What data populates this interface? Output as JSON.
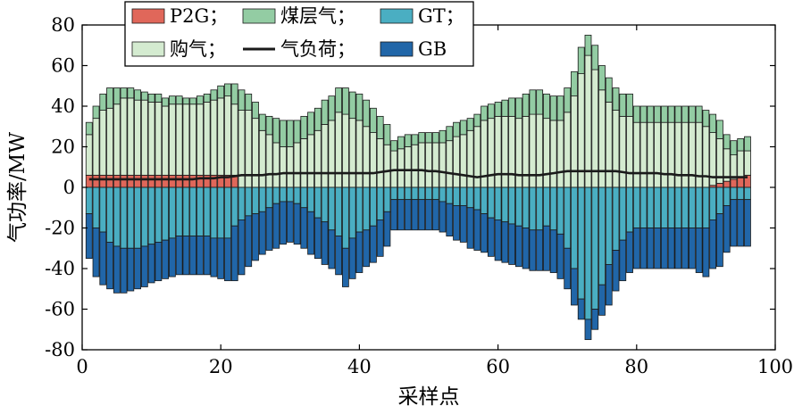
{
  "chart_data": {
    "type": "bar",
    "stacked": true,
    "xlabel": "采样点",
    "ylabel": "气功率/MW",
    "xlim": [
      0,
      100
    ],
    "ylim": [
      -80,
      80
    ],
    "x_ticks": [
      0,
      20,
      40,
      60,
      80,
      100
    ],
    "y_ticks": [
      -80,
      -60,
      -40,
      -20,
      0,
      20,
      40,
      60,
      80
    ],
    "grid": false,
    "legend_position": "top",
    "legend": [
      {
        "key": "p2g",
        "label": "P2G；",
        "swatch": "bar"
      },
      {
        "key": "cbm",
        "label": "煤层气；",
        "swatch": "bar"
      },
      {
        "key": "gt",
        "label": "GT；",
        "swatch": "bar"
      },
      {
        "key": "purchase",
        "label": "购气；",
        "swatch": "bar"
      },
      {
        "key": "load",
        "label": "气负荷；",
        "swatch": "line"
      },
      {
        "key": "gb",
        "label": "GB",
        "swatch": "bar"
      }
    ],
    "colors": {
      "p2g": "#e0675a",
      "cbm": "#93cca3",
      "gt": "#4aaec2",
      "purchase": "#d4ebd0",
      "load": "#1a1a1a",
      "gb": "#2166a8"
    },
    "x": [
      1,
      2,
      3,
      4,
      5,
      6,
      7,
      8,
      9,
      10,
      11,
      12,
      13,
      14,
      15,
      16,
      17,
      18,
      19,
      20,
      21,
      22,
      23,
      24,
      25,
      26,
      27,
      28,
      29,
      30,
      31,
      32,
      33,
      34,
      35,
      36,
      37,
      38,
      39,
      40,
      41,
      42,
      43,
      44,
      45,
      46,
      47,
      48,
      49,
      50,
      51,
      52,
      53,
      54,
      55,
      56,
      57,
      58,
      59,
      60,
      61,
      62,
      63,
      64,
      65,
      66,
      67,
      68,
      69,
      70,
      71,
      72,
      73,
      74,
      75,
      76,
      77,
      78,
      79,
      80,
      81,
      82,
      83,
      84,
      85,
      86,
      87,
      88,
      89,
      90,
      91,
      92,
      93,
      94,
      95,
      96
    ],
    "series": [
      {
        "key": "p2g",
        "name": "P2G",
        "values": [
          6,
          6,
          6,
          6,
          6,
          6,
          6,
          6,
          6,
          6,
          6,
          6,
          6,
          6,
          6,
          6,
          6,
          6,
          6,
          6,
          6,
          6,
          0,
          0,
          0,
          0,
          0,
          0,
          0,
          0,
          0,
          0,
          0,
          0,
          0,
          0,
          0,
          0,
          0,
          0,
          0,
          0,
          0,
          0,
          0,
          0,
          0,
          0,
          0,
          0,
          0,
          0,
          0,
          0,
          0,
          0,
          0,
          0,
          0,
          0,
          0,
          0,
          0,
          0,
          0,
          0,
          0,
          0,
          0,
          0,
          0,
          0,
          0,
          0,
          0,
          0,
          0,
          0,
          0,
          0,
          0,
          0,
          0,
          0,
          0,
          0,
          0,
          0,
          0,
          0,
          1,
          2,
          3,
          4,
          5,
          6
        ]
      },
      {
        "key": "purchase",
        "name": "购气",
        "values": [
          20,
          28,
          32,
          33,
          35,
          38,
          38,
          37,
          37,
          36,
          36,
          34,
          35,
          35,
          35,
          35,
          35,
          36,
          37,
          38,
          39,
          35,
          38,
          38,
          34,
          28,
          26,
          22,
          20,
          20,
          22,
          24,
          26,
          28,
          31,
          33,
          37,
          36,
          34,
          33,
          30,
          27,
          24,
          21,
          18,
          19,
          20,
          21,
          22,
          22,
          22,
          22,
          23,
          25,
          26,
          28,
          30,
          33,
          34,
          35,
          35,
          35,
          34,
          35,
          36,
          36,
          34,
          33,
          33,
          37,
          45,
          56,
          65,
          58,
          48,
          42,
          38,
          35,
          35,
          32,
          32,
          32,
          32,
          32,
          32,
          32,
          32,
          32,
          32,
          30,
          26,
          22,
          16,
          12,
          13,
          12
        ]
      },
      {
        "key": "cbm",
        "name": "煤层气",
        "values": [
          6,
          6,
          8,
          10,
          8,
          5,
          5,
          5,
          4,
          4,
          4,
          4,
          4,
          4,
          3,
          3,
          4,
          4,
          5,
          6,
          6,
          10,
          10,
          8,
          8,
          8,
          9,
          12,
          13,
          13,
          11,
          11,
          11,
          11,
          12,
          12,
          12,
          13,
          13,
          13,
          13,
          12,
          11,
          10,
          5,
          6,
          6,
          5,
          5,
          5,
          5,
          6,
          7,
          7,
          7,
          6,
          6,
          7,
          7,
          7,
          8,
          9,
          10,
          11,
          12,
          12,
          12,
          12,
          12,
          12,
          12,
          13,
          10,
          12,
          12,
          12,
          11,
          11,
          11,
          8,
          8,
          8,
          8,
          8,
          8,
          8,
          8,
          8,
          8,
          8,
          9,
          9,
          7,
          7,
          6,
          7
        ]
      },
      {
        "key": "gt",
        "name": "GT",
        "values": [
          -13,
          -20,
          -22,
          -27,
          -29,
          -30,
          -30,
          -30,
          -29,
          -28,
          -27,
          -26,
          -25,
          -24,
          -24,
          -24,
          -24,
          -24,
          -25,
          -25,
          -25,
          -19,
          -16,
          -14,
          -13,
          -12,
          -10,
          -8,
          -7,
          -7,
          -8,
          -10,
          -12,
          -15,
          -17,
          -21,
          -24,
          -30,
          -25,
          -22,
          -21,
          -19,
          -16,
          -12,
          -6,
          -6,
          -6,
          -6,
          -6,
          -6,
          -6,
          -7,
          -8,
          -9,
          -9,
          -10,
          -11,
          -13,
          -15,
          -16,
          -17,
          -18,
          -19,
          -20,
          -21,
          -21,
          -19,
          -21,
          -23,
          -30,
          -40,
          -55,
          -65,
          -60,
          -48,
          -38,
          -31,
          -26,
          -22,
          -20,
          -20,
          -20,
          -20,
          -20,
          -20,
          -20,
          -20,
          -20,
          -20,
          -20,
          -16,
          -13,
          -9,
          -6,
          -6,
          -6
        ]
      },
      {
        "key": "gb",
        "name": "GB",
        "values": [
          -22,
          -24,
          -26,
          -23,
          -23,
          -22,
          -21,
          -20,
          -20,
          -19,
          -19,
          -19,
          -19,
          -19,
          -19,
          -19,
          -19,
          -19,
          -19,
          -20,
          -21,
          -27,
          -27,
          -25,
          -23,
          -21,
          -21,
          -22,
          -21,
          -20,
          -20,
          -20,
          -21,
          -20,
          -21,
          -19,
          -19,
          -19,
          -20,
          -20,
          -18,
          -18,
          -18,
          -17,
          -15,
          -15,
          -15,
          -15,
          -15,
          -15,
          -15,
          -15,
          -16,
          -17,
          -18,
          -20,
          -20,
          -19,
          -19,
          -20,
          -20,
          -20,
          -20,
          -20,
          -20,
          -20,
          -22,
          -21,
          -22,
          -20,
          -18,
          -10,
          -10,
          -10,
          -15,
          -20,
          -20,
          -20,
          -20,
          -20,
          -20,
          -20,
          -20,
          -20,
          -20,
          -20,
          -20,
          -20,
          -22,
          -24,
          -24,
          -26,
          -23,
          -23,
          -23,
          -23
        ]
      },
      {
        "key": "load",
        "name": "气负荷",
        "values": [
          4,
          4,
          4,
          4,
          4,
          4,
          4,
          4,
          4,
          4,
          4,
          4,
          4,
          4,
          4,
          4,
          4.5,
          4.5,
          4.5,
          5,
          5,
          5.5,
          6,
          6,
          6,
          6,
          6.5,
          6.5,
          7,
          7,
          7,
          7,
          7,
          7,
          7,
          7,
          7,
          7,
          7,
          7,
          7,
          7,
          7.5,
          8,
          8.5,
          8.5,
          8.5,
          8.5,
          8.5,
          8,
          8,
          7.5,
          7,
          6.5,
          6,
          5.5,
          5,
          5.5,
          6,
          6.5,
          6.5,
          6.5,
          6,
          6,
          6,
          6,
          6.5,
          7,
          7.5,
          8,
          8,
          8,
          8,
          8,
          8,
          8,
          8,
          7.5,
          7,
          7,
          7,
          7,
          7,
          6.5,
          6.5,
          6,
          6,
          6,
          5.5,
          5.5,
          5,
          5,
          5,
          5,
          5,
          5
        ]
      }
    ]
  }
}
